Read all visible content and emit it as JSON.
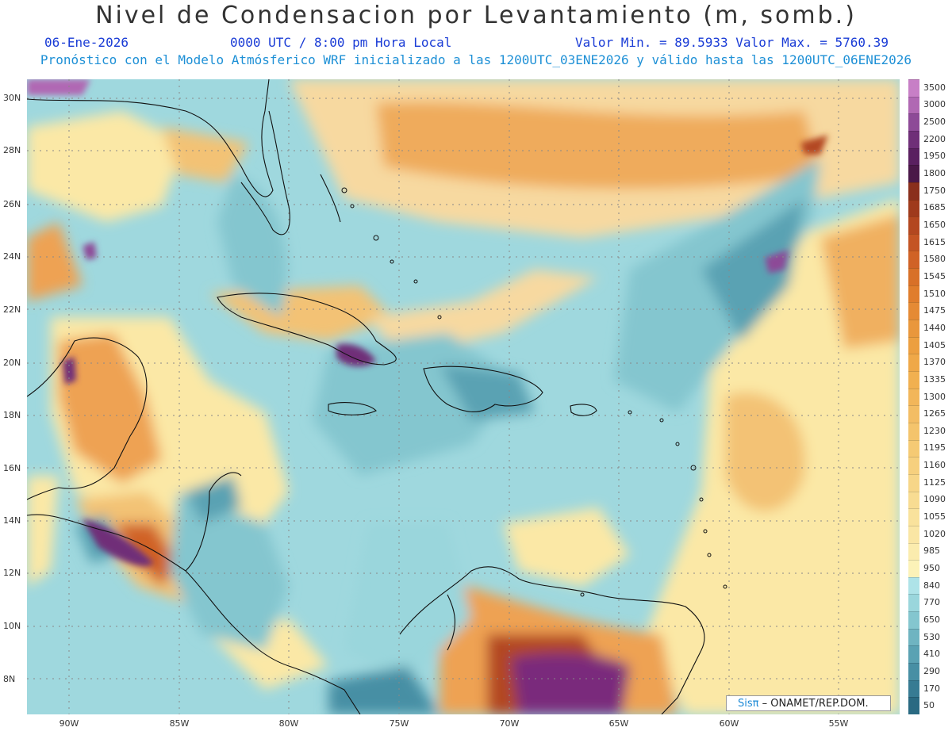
{
  "header": {
    "title": "Nivel de Condensacion por Levantamiento (m, somb.)",
    "date": "06-Ene-2026",
    "time": "0000 UTC / 8:00 pm Hora Local",
    "minmax": "Valor Min. = 89.5933  Valor Max. = 5760.39",
    "subtitle": "Pronóstico con el Modelo Atmósferico WRF inicializado a las 1200UTC_03ENE2026 y válido hasta las  1200UTC_06ENE2026"
  },
  "map": {
    "lat_labels": [
      "30N",
      "28N",
      "26N",
      "24N",
      "22N",
      "20N",
      "18N",
      "16N",
      "14N",
      "12N",
      "10N",
      "8N"
    ],
    "lon_labels": [
      "90W",
      "85W",
      "80W",
      "75W",
      "70W",
      "65W",
      "60W",
      "55W"
    ]
  },
  "colorbar": {
    "labels": [
      "3500",
      "3000",
      "2500",
      "2200",
      "1950",
      "1800",
      "1750",
      "1685",
      "1650",
      "1615",
      "1580",
      "1545",
      "1510",
      "1475",
      "1440",
      "1405",
      "1370",
      "1335",
      "1300",
      "1265",
      "1230",
      "1195",
      "1160",
      "1125",
      "1090",
      "1055",
      "1020",
      "985",
      "950",
      "840",
      "770",
      "650",
      "530",
      "410",
      "290",
      "170",
      "50"
    ],
    "colors": [
      "#c77fc6",
      "#b068b3",
      "#8d4a97",
      "#6f2f78",
      "#5a2060",
      "#4a1848",
      "#8a2f1c",
      "#9f3a1c",
      "#b34720",
      "#c45424",
      "#d06226",
      "#d87028",
      "#e07d2c",
      "#e58a34",
      "#e9973c",
      "#ec9f40",
      "#efa848",
      "#f1b050",
      "#f2b65a",
      "#f3bd64",
      "#f4c46c",
      "#f5ca74",
      "#f6d07e",
      "#f7d688",
      "#f8dc92",
      "#f9e29c",
      "#fae6a4",
      "#fbecae",
      "#fcf2b8",
      "#aee3e8",
      "#9ad6dc",
      "#84c6cf",
      "#6fb4c1",
      "#5aa2b3",
      "#478fa4",
      "#377b93",
      "#2a6a82"
    ]
  },
  "credit": {
    "logo": "Sisπ",
    "text": " – ONAMET/REP.DOM."
  }
}
